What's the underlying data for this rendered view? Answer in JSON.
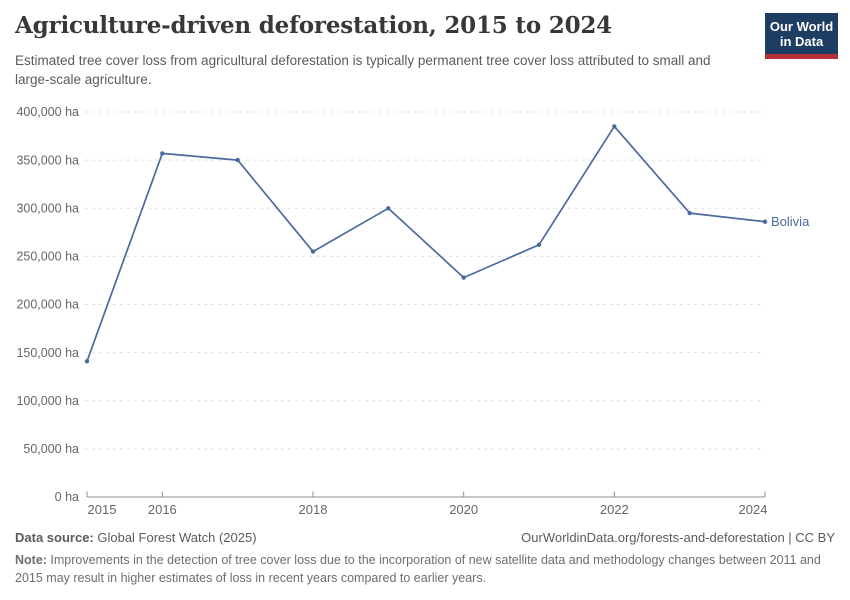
{
  "header": {
    "title": "Agriculture-driven deforestation, 2015 to 2024",
    "subtitle": "Estimated tree cover loss from agricultural deforestation is typically permanent tree cover loss attributed to small and large-scale agriculture.",
    "logo_line1": "Our World",
    "logo_line2": "in Data"
  },
  "chart_data": {
    "type": "line",
    "title": "Agriculture-driven deforestation, 2015 to 2024",
    "unit": "ha",
    "x": [
      2015,
      2016,
      2017,
      2018,
      2019,
      2020,
      2021,
      2022,
      2023,
      2024
    ],
    "series": [
      {
        "name": "Bolivia",
        "color": "#4C6A9C",
        "values": [
          141000,
          357000,
          350000,
          255000,
          300000,
          228000,
          262000,
          385000,
          295000,
          286000
        ]
      }
    ],
    "ylim": [
      0,
      400000
    ],
    "yticks": [
      0,
      50000,
      100000,
      150000,
      200000,
      250000,
      300000,
      350000,
      400000
    ],
    "ytick_labels": [
      "0 ha",
      "50,000 ha",
      "100,000 ha",
      "150,000 ha",
      "200,000 ha",
      "250,000 ha",
      "300,000 ha",
      "350,000 ha",
      "400,000 ha"
    ],
    "xticks": [
      2015,
      2016,
      2018,
      2020,
      2022,
      2024
    ],
    "xtick_labels": [
      "2015",
      "2016",
      "2018",
      "2020",
      "2022",
      "2024"
    ],
    "grid": "horizontal-dashed",
    "legend_position": "end-of-line"
  },
  "footer": {
    "datasource_label": "Data source:",
    "datasource_value": " Global Forest Watch (2025)",
    "citation": "OurWorldinData.org/forests-and-deforestation | CC BY",
    "note_label": "Note:",
    "note_text": " Improvements in the detection of tree cover loss due to the incorporation of new satellite data and methodology changes between 2011 and 2015 may result in higher estimates of loss in recent years compared to earlier years."
  },
  "colors": {
    "series_line": "#4C6A9C",
    "grid_line": "#e0e0e0",
    "axis_line": "#8f8f8f",
    "tick_label": "#666666",
    "title": "#383838",
    "subtitle": "#5b5b5b",
    "footer_text": "#5b5b5b",
    "note_text": "#6e6e6e",
    "logo_bg": "#1d3d63",
    "logo_bar": "#b62e35"
  }
}
